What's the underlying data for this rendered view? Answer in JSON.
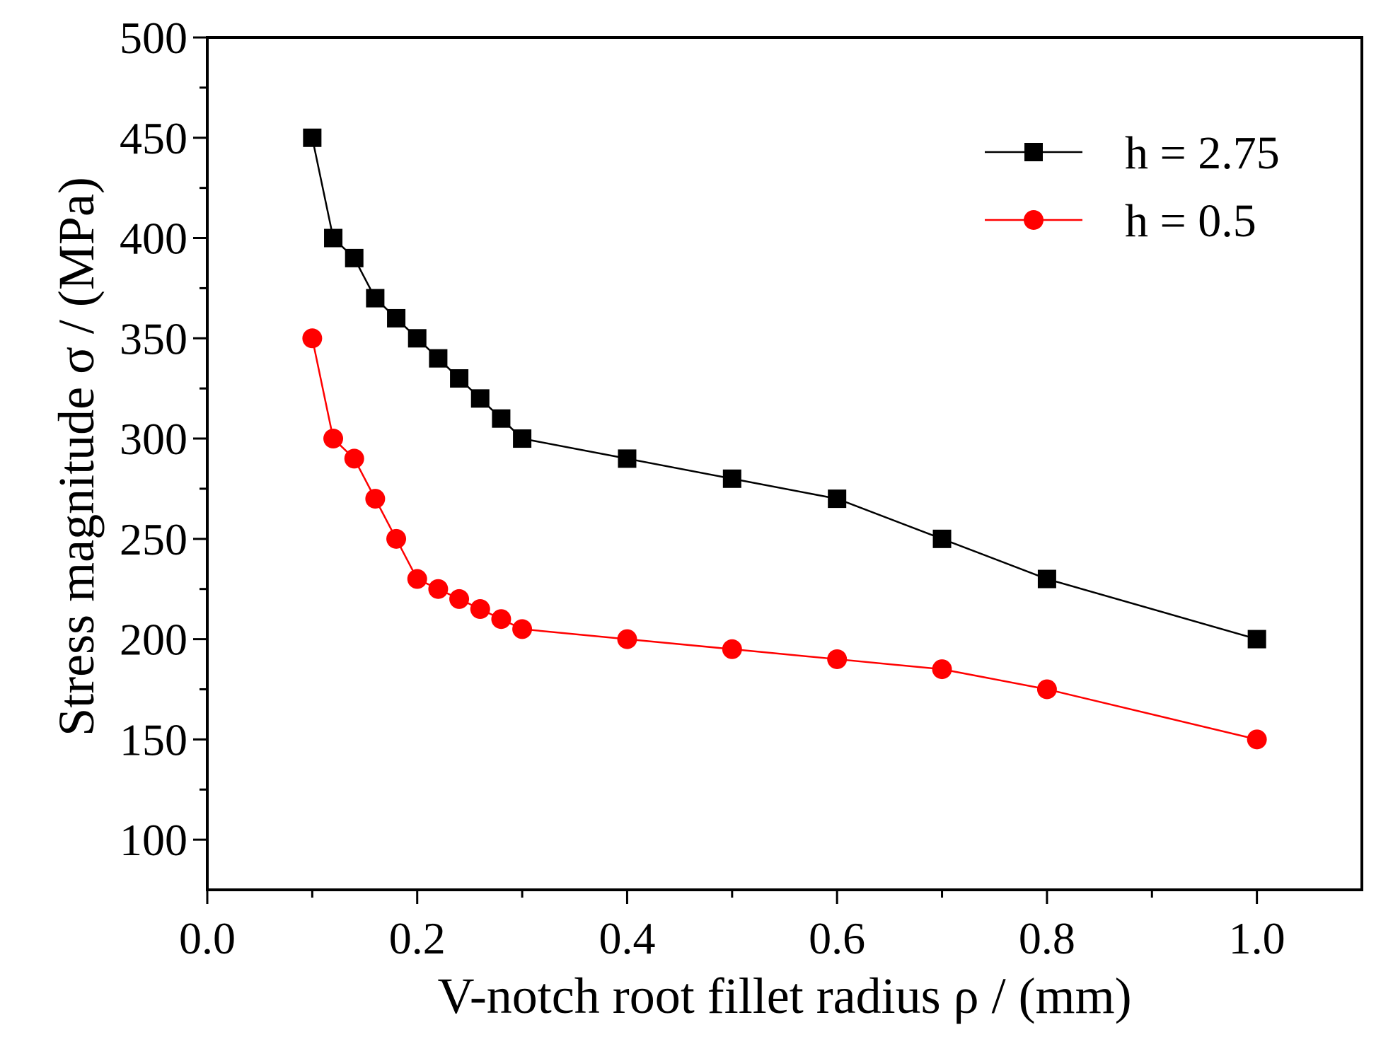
{
  "chart_data": {
    "type": "line",
    "title": "",
    "xlabel": "V-notch root fillet radius ρ / (mm)",
    "ylabel": "Stress magnitude σ / (MPa)",
    "xlim": [
      0.0,
      1.1
    ],
    "ylim": [
      75,
      500
    ],
    "xticks": [
      0.0,
      0.2,
      0.4,
      0.6,
      0.8,
      1.0
    ],
    "xtick_labels": [
      "0.0",
      "0.2",
      "0.4",
      "0.6",
      "0.8",
      "1.0"
    ],
    "yticks": [
      100,
      150,
      200,
      250,
      300,
      350,
      400,
      450,
      500
    ],
    "ytick_labels": [
      "100",
      "150",
      "200",
      "250",
      "300",
      "350",
      "400",
      "450",
      "500"
    ],
    "grid": false,
    "legend_position": "top-right",
    "series": [
      {
        "name": "h = 2.75",
        "marker": "square",
        "color": "#000000",
        "x": [
          0.1,
          0.12,
          0.14,
          0.16,
          0.18,
          0.2,
          0.22,
          0.24,
          0.26,
          0.28,
          0.3,
          0.4,
          0.5,
          0.6,
          0.7,
          0.8,
          1.0
        ],
        "y": [
          450,
          400,
          390,
          370,
          360,
          350,
          340,
          330,
          320,
          310,
          300,
          290,
          280,
          270,
          250,
          230,
          200
        ]
      },
      {
        "name": "h = 0.5",
        "marker": "circle",
        "color": "#ff0000",
        "x": [
          0.1,
          0.12,
          0.14,
          0.16,
          0.18,
          0.2,
          0.22,
          0.24,
          0.26,
          0.28,
          0.3,
          0.4,
          0.5,
          0.6,
          0.7,
          0.8,
          1.0
        ],
        "y": [
          350,
          300,
          290,
          270,
          250,
          230,
          225,
          220,
          215,
          210,
          205,
          200,
          195,
          190,
          185,
          175,
          150
        ]
      }
    ]
  }
}
